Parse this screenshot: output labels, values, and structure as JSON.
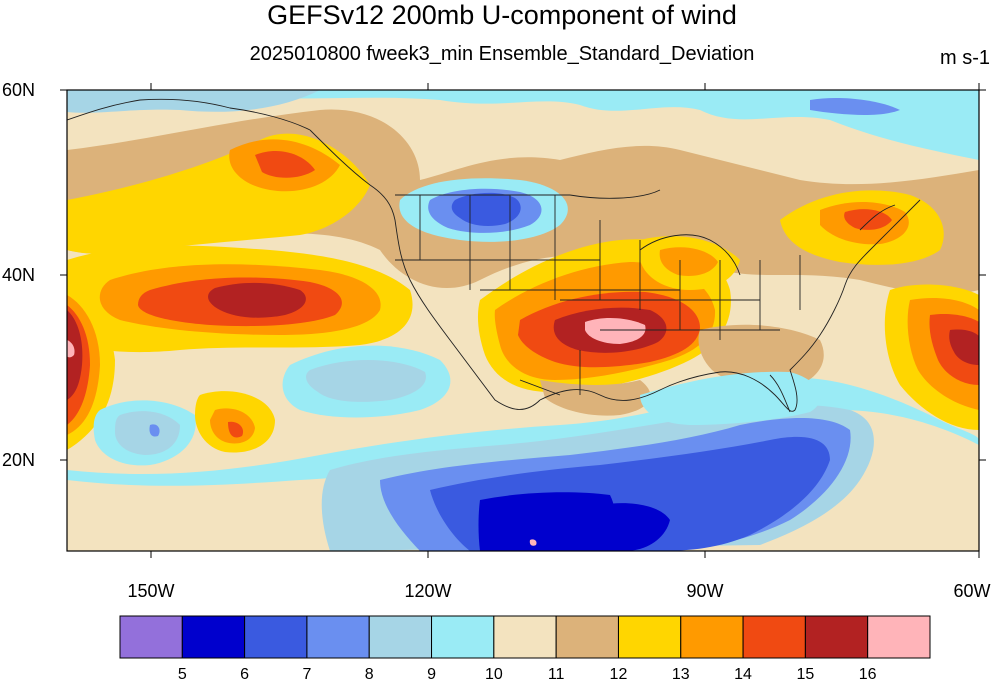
{
  "title": "GEFSv12 200mb U-component of wind",
  "subtitle": "2025010800 fweek3_min Ensemble_Standard_Deviation",
  "units": "m s-1",
  "axes": {
    "lat_labels": [
      "60N",
      "40N",
      "20N"
    ],
    "lon_labels": [
      "150W",
      "120W",
      "90W",
      "60W"
    ]
  },
  "colorbar": {
    "colors": [
      "#9370db",
      "#0000cd",
      "#3a5ae0",
      "#6a8ff0",
      "#a6d5e6",
      "#9aebf5",
      "#f3e3bf",
      "#dcb27a",
      "#ffd600",
      "#ff9a00",
      "#f04a12",
      "#b22222",
      "#ffb4b9"
    ],
    "labels": [
      "5",
      "6",
      "7",
      "8",
      "9",
      "10",
      "11",
      "12",
      "13",
      "14",
      "15",
      "16"
    ]
  }
}
